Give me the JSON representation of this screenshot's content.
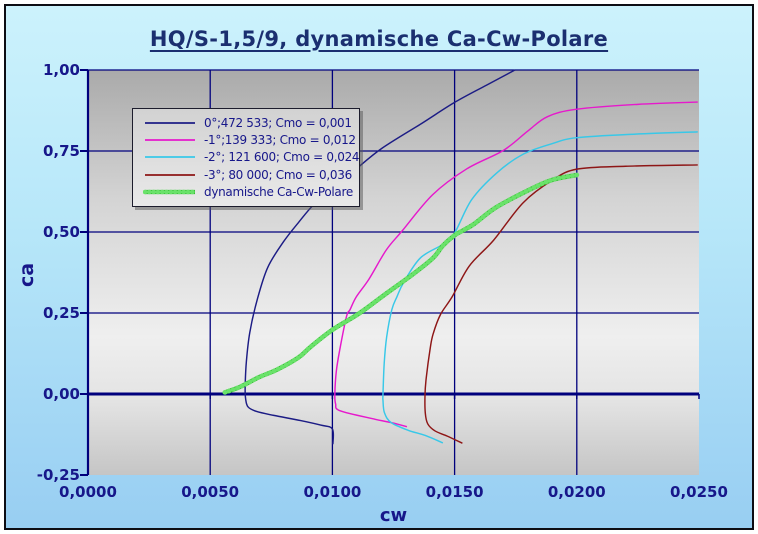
{
  "title": "HQ/S-1,5/9, dynamische Ca-Cw-Polare",
  "theme": {
    "background_top": "#ccf2fc",
    "background_mid": "#b7e7f9",
    "background_bottom": "#98cef2",
    "frame_border": "#0d0d14",
    "text_color": "#17178a",
    "title_color": "#1b2f70",
    "grid_color": "#00007d",
    "plot_bg_gray_top": "#aaaaaa",
    "plot_bg_gray_light": "#efefef",
    "legend_bg": "#dedede"
  },
  "chart_data": {
    "type": "line",
    "title": "HQ/S-1,5/9, dynamische Ca-Cw-Polare",
    "xlabel": "cw",
    "ylabel": "ca",
    "xlim": [
      0.0,
      0.025
    ],
    "ylim": [
      -0.25,
      1.0
    ],
    "grid": true,
    "legend_position": "top-left",
    "xticks": {
      "values": [
        0.0,
        0.005,
        0.01,
        0.015,
        0.02,
        0.025
      ],
      "labels": [
        "0,0000",
        "0,0050",
        "0,0100",
        "0,0150",
        "0,0200",
        "0,0250"
      ]
    },
    "yticks": {
      "values": [
        1.0,
        0.75,
        0.5,
        0.25,
        0.0,
        -0.25
      ],
      "labels": [
        "1,00",
        "0,75",
        "0,50",
        "0,25",
        "0,00",
        "-0,25"
      ]
    },
    "series": [
      {
        "name": "0°;472 533; Cmo = 0,001",
        "color": "#1c1c85",
        "width": 1.45,
        "style": "line",
        "points": [
          [
            0.01002,
            -0.155
          ],
          [
            0.01,
            -0.108
          ],
          [
            0.00952,
            -0.096
          ],
          [
            0.0087,
            -0.082
          ],
          [
            0.0076,
            -0.066
          ],
          [
            0.0069,
            -0.054
          ],
          [
            0.00655,
            -0.04
          ],
          [
            0.00645,
            -0.015
          ],
          [
            0.00643,
            0.02
          ],
          [
            0.00648,
            0.1
          ],
          [
            0.00662,
            0.19
          ],
          [
            0.00692,
            0.29
          ],
          [
            0.00735,
            0.39
          ],
          [
            0.008,
            0.47
          ],
          [
            0.00862,
            0.53
          ],
          [
            0.0093,
            0.59
          ],
          [
            0.0103,
            0.655
          ],
          [
            0.0109,
            0.69
          ],
          [
            0.012,
            0.757
          ],
          [
            0.01365,
            0.835
          ],
          [
            0.015,
            0.9
          ],
          [
            0.0163,
            0.953
          ],
          [
            0.01747,
            1.0
          ]
        ]
      },
      {
        "name": "-1°;139 333; Cmo = 0,012",
        "color": "#e619cc",
        "width": 1.45,
        "style": "line",
        "points": [
          [
            0.01305,
            -0.101
          ],
          [
            0.01245,
            -0.089
          ],
          [
            0.01175,
            -0.078
          ],
          [
            0.01032,
            -0.052
          ],
          [
            0.01013,
            -0.03
          ],
          [
            0.0101,
            0.0
          ],
          [
            0.01016,
            0.07
          ],
          [
            0.0103,
            0.136
          ],
          [
            0.01058,
            0.24
          ],
          [
            0.01072,
            0.26
          ],
          [
            0.01098,
            0.3
          ],
          [
            0.0115,
            0.355
          ],
          [
            0.0122,
            0.444
          ],
          [
            0.01285,
            0.503
          ],
          [
            0.0141,
            0.615
          ],
          [
            0.0155,
            0.695
          ],
          [
            0.017,
            0.752
          ],
          [
            0.018,
            0.812
          ],
          [
            0.0188,
            0.856
          ],
          [
            0.02,
            0.879
          ],
          [
            0.0225,
            0.894
          ],
          [
            0.02495,
            0.901
          ]
        ]
      },
      {
        "name": "-2°; 121 600; Cmo = 0,024",
        "color": "#38c8e8",
        "width": 1.45,
        "style": "line",
        "points": [
          [
            0.01452,
            -0.151
          ],
          [
            0.0138,
            -0.128
          ],
          [
            0.0131,
            -0.112
          ],
          [
            0.0124,
            -0.088
          ],
          [
            0.01213,
            -0.058
          ],
          [
            0.01207,
            -0.02
          ],
          [
            0.01207,
            0.0
          ],
          [
            0.01212,
            0.095
          ],
          [
            0.01222,
            0.176
          ],
          [
            0.01243,
            0.26
          ],
          [
            0.01264,
            0.3
          ],
          [
            0.01292,
            0.345
          ],
          [
            0.0136,
            0.42
          ],
          [
            0.01452,
            0.462
          ],
          [
            0.015,
            0.497
          ],
          [
            0.0157,
            0.6
          ],
          [
            0.01672,
            0.682
          ],
          [
            0.0178,
            0.74
          ],
          [
            0.019,
            0.773
          ],
          [
            0.02,
            0.791
          ],
          [
            0.0224,
            0.802
          ],
          [
            0.02495,
            0.809
          ]
        ]
      },
      {
        "name": "-3°; 80 000; Cmo = 0,036",
        "color": "#8e1616",
        "width": 1.45,
        "style": "line",
        "points": [
          [
            0.01532,
            -0.152
          ],
          [
            0.0147,
            -0.13
          ],
          [
            0.0142,
            -0.114
          ],
          [
            0.0139,
            -0.092
          ],
          [
            0.0138,
            -0.058
          ],
          [
            0.01379,
            0.0
          ],
          [
            0.01384,
            0.05
          ],
          [
            0.014,
            0.14
          ],
          [
            0.01412,
            0.185
          ],
          [
            0.01442,
            0.245
          ],
          [
            0.0149,
            0.3
          ],
          [
            0.0156,
            0.395
          ],
          [
            0.0166,
            0.475
          ],
          [
            0.0178,
            0.59
          ],
          [
            0.019,
            0.66
          ],
          [
            0.02,
            0.694
          ],
          [
            0.022,
            0.703
          ],
          [
            0.02495,
            0.707
          ]
        ]
      },
      {
        "name": "dynamische Ca-Cw-Polare",
        "color": "#2eba2e",
        "color_light": "#6ae26a",
        "width": 4.4,
        "style": "dotted-thick",
        "points": [
          [
            0.0056,
            0.005
          ],
          [
            0.00622,
            0.022
          ],
          [
            0.007,
            0.052
          ],
          [
            0.00773,
            0.075
          ],
          [
            0.0086,
            0.112
          ],
          [
            0.0091,
            0.145
          ],
          [
            0.01,
            0.198
          ],
          [
            0.01112,
            0.25
          ],
          [
            0.0122,
            0.31
          ],
          [
            0.0133,
            0.37
          ],
          [
            0.01412,
            0.42
          ],
          [
            0.01452,
            0.458
          ],
          [
            0.015,
            0.49
          ],
          [
            0.01535,
            0.505
          ],
          [
            0.0158,
            0.525
          ],
          [
            0.01672,
            0.577
          ],
          [
            0.0181,
            0.632
          ],
          [
            0.019,
            0.661
          ],
          [
            0.02,
            0.676
          ]
        ]
      }
    ]
  }
}
